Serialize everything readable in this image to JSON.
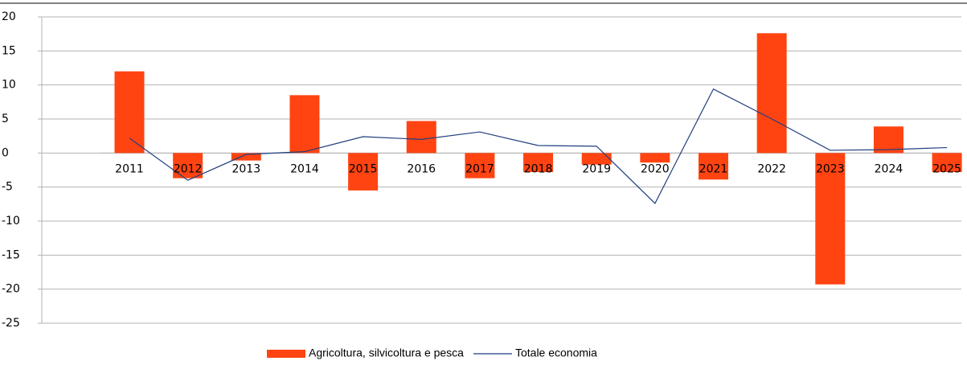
{
  "chart_data": {
    "type": "bar_line",
    "categories": [
      "2011",
      "2012",
      "2013",
      "2014",
      "2015",
      "2016",
      "2017",
      "2018",
      "2019",
      "2020",
      "2021",
      "2022",
      "2023",
      "2024",
      "2025"
    ],
    "series": [
      {
        "name": "Agricoltura, silvicoltura e pesca",
        "type": "bar",
        "color": "#ff4412",
        "values": [
          12,
          -3.7,
          -1.1,
          8.5,
          -5.5,
          4.7,
          -3.7,
          -2.8,
          -1.7,
          -1.4,
          -3.9,
          17.6,
          -19.3,
          3.9,
          -2.8
        ]
      },
      {
        "name": "Totale economia",
        "type": "line",
        "color": "#1f3f7f",
        "values": [
          2.2,
          -4.0,
          -0.2,
          0.2,
          2.4,
          2.0,
          3.1,
          1.1,
          1.0,
          -7.4,
          9.4,
          5.0,
          0.4,
          0.5,
          0.8
        ]
      }
    ],
    "ylim": [
      -25,
      20
    ],
    "yticks": [
      -25,
      -20,
      -15,
      -10,
      -5,
      0,
      5,
      10,
      15,
      20
    ],
    "grid": true,
    "legend": "bottom"
  }
}
